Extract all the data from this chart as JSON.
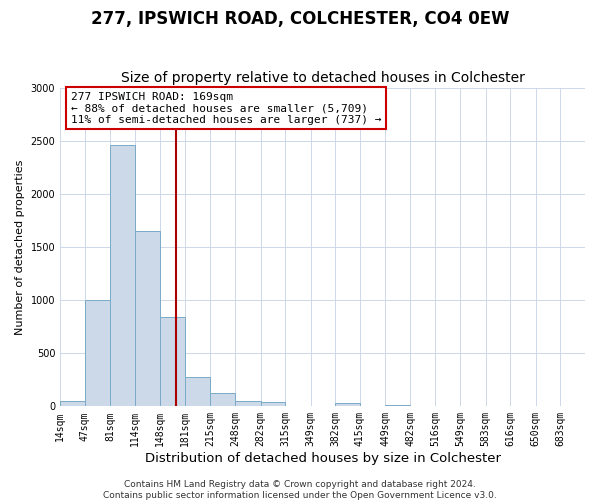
{
  "title": "277, IPSWICH ROAD, COLCHESTER, CO4 0EW",
  "subtitle": "Size of property relative to detached houses in Colchester",
  "xlabel": "Distribution of detached houses by size in Colchester",
  "ylabel": "Number of detached properties",
  "bin_labels": [
    "14sqm",
    "47sqm",
    "81sqm",
    "114sqm",
    "148sqm",
    "181sqm",
    "215sqm",
    "248sqm",
    "282sqm",
    "315sqm",
    "349sqm",
    "382sqm",
    "415sqm",
    "449sqm",
    "482sqm",
    "516sqm",
    "549sqm",
    "583sqm",
    "616sqm",
    "650sqm",
    "683sqm"
  ],
  "bar_values": [
    55,
    1000,
    2470,
    1650,
    840,
    275,
    130,
    55,
    40,
    0,
    0,
    30,
    0,
    12,
    0,
    0,
    0,
    0,
    0,
    0,
    0
  ],
  "bar_color": "#ccd9e8",
  "bar_edgecolor": "#7aaac8",
  "property_line_x": 169,
  "bin_edges": [
    14,
    47,
    81,
    114,
    148,
    181,
    215,
    248,
    282,
    315,
    349,
    382,
    415,
    449,
    482,
    516,
    549,
    583,
    616,
    650,
    683,
    716
  ],
  "vline_color": "#aa0000",
  "annotation_line1": "277 IPSWICH ROAD: 169sqm",
  "annotation_line2": "← 88% of detached houses are smaller (5,709)",
  "annotation_line3": "11% of semi-detached houses are larger (737) →",
  "annotation_box_edgecolor": "#cc0000",
  "annotation_box_facecolor": "#ffffff",
  "ylim": [
    0,
    3000
  ],
  "yticks": [
    0,
    500,
    1000,
    1500,
    2000,
    2500,
    3000
  ],
  "footer1": "Contains HM Land Registry data © Crown copyright and database right 2024.",
  "footer2": "Contains public sector information licensed under the Open Government Licence v3.0.",
  "background_color": "#ffffff",
  "grid_color": "#ccd8e8",
  "title_fontsize": 12,
  "subtitle_fontsize": 10,
  "xlabel_fontsize": 9.5,
  "ylabel_fontsize": 8,
  "tick_fontsize": 7,
  "annotation_fontsize": 8,
  "footer_fontsize": 6.5
}
